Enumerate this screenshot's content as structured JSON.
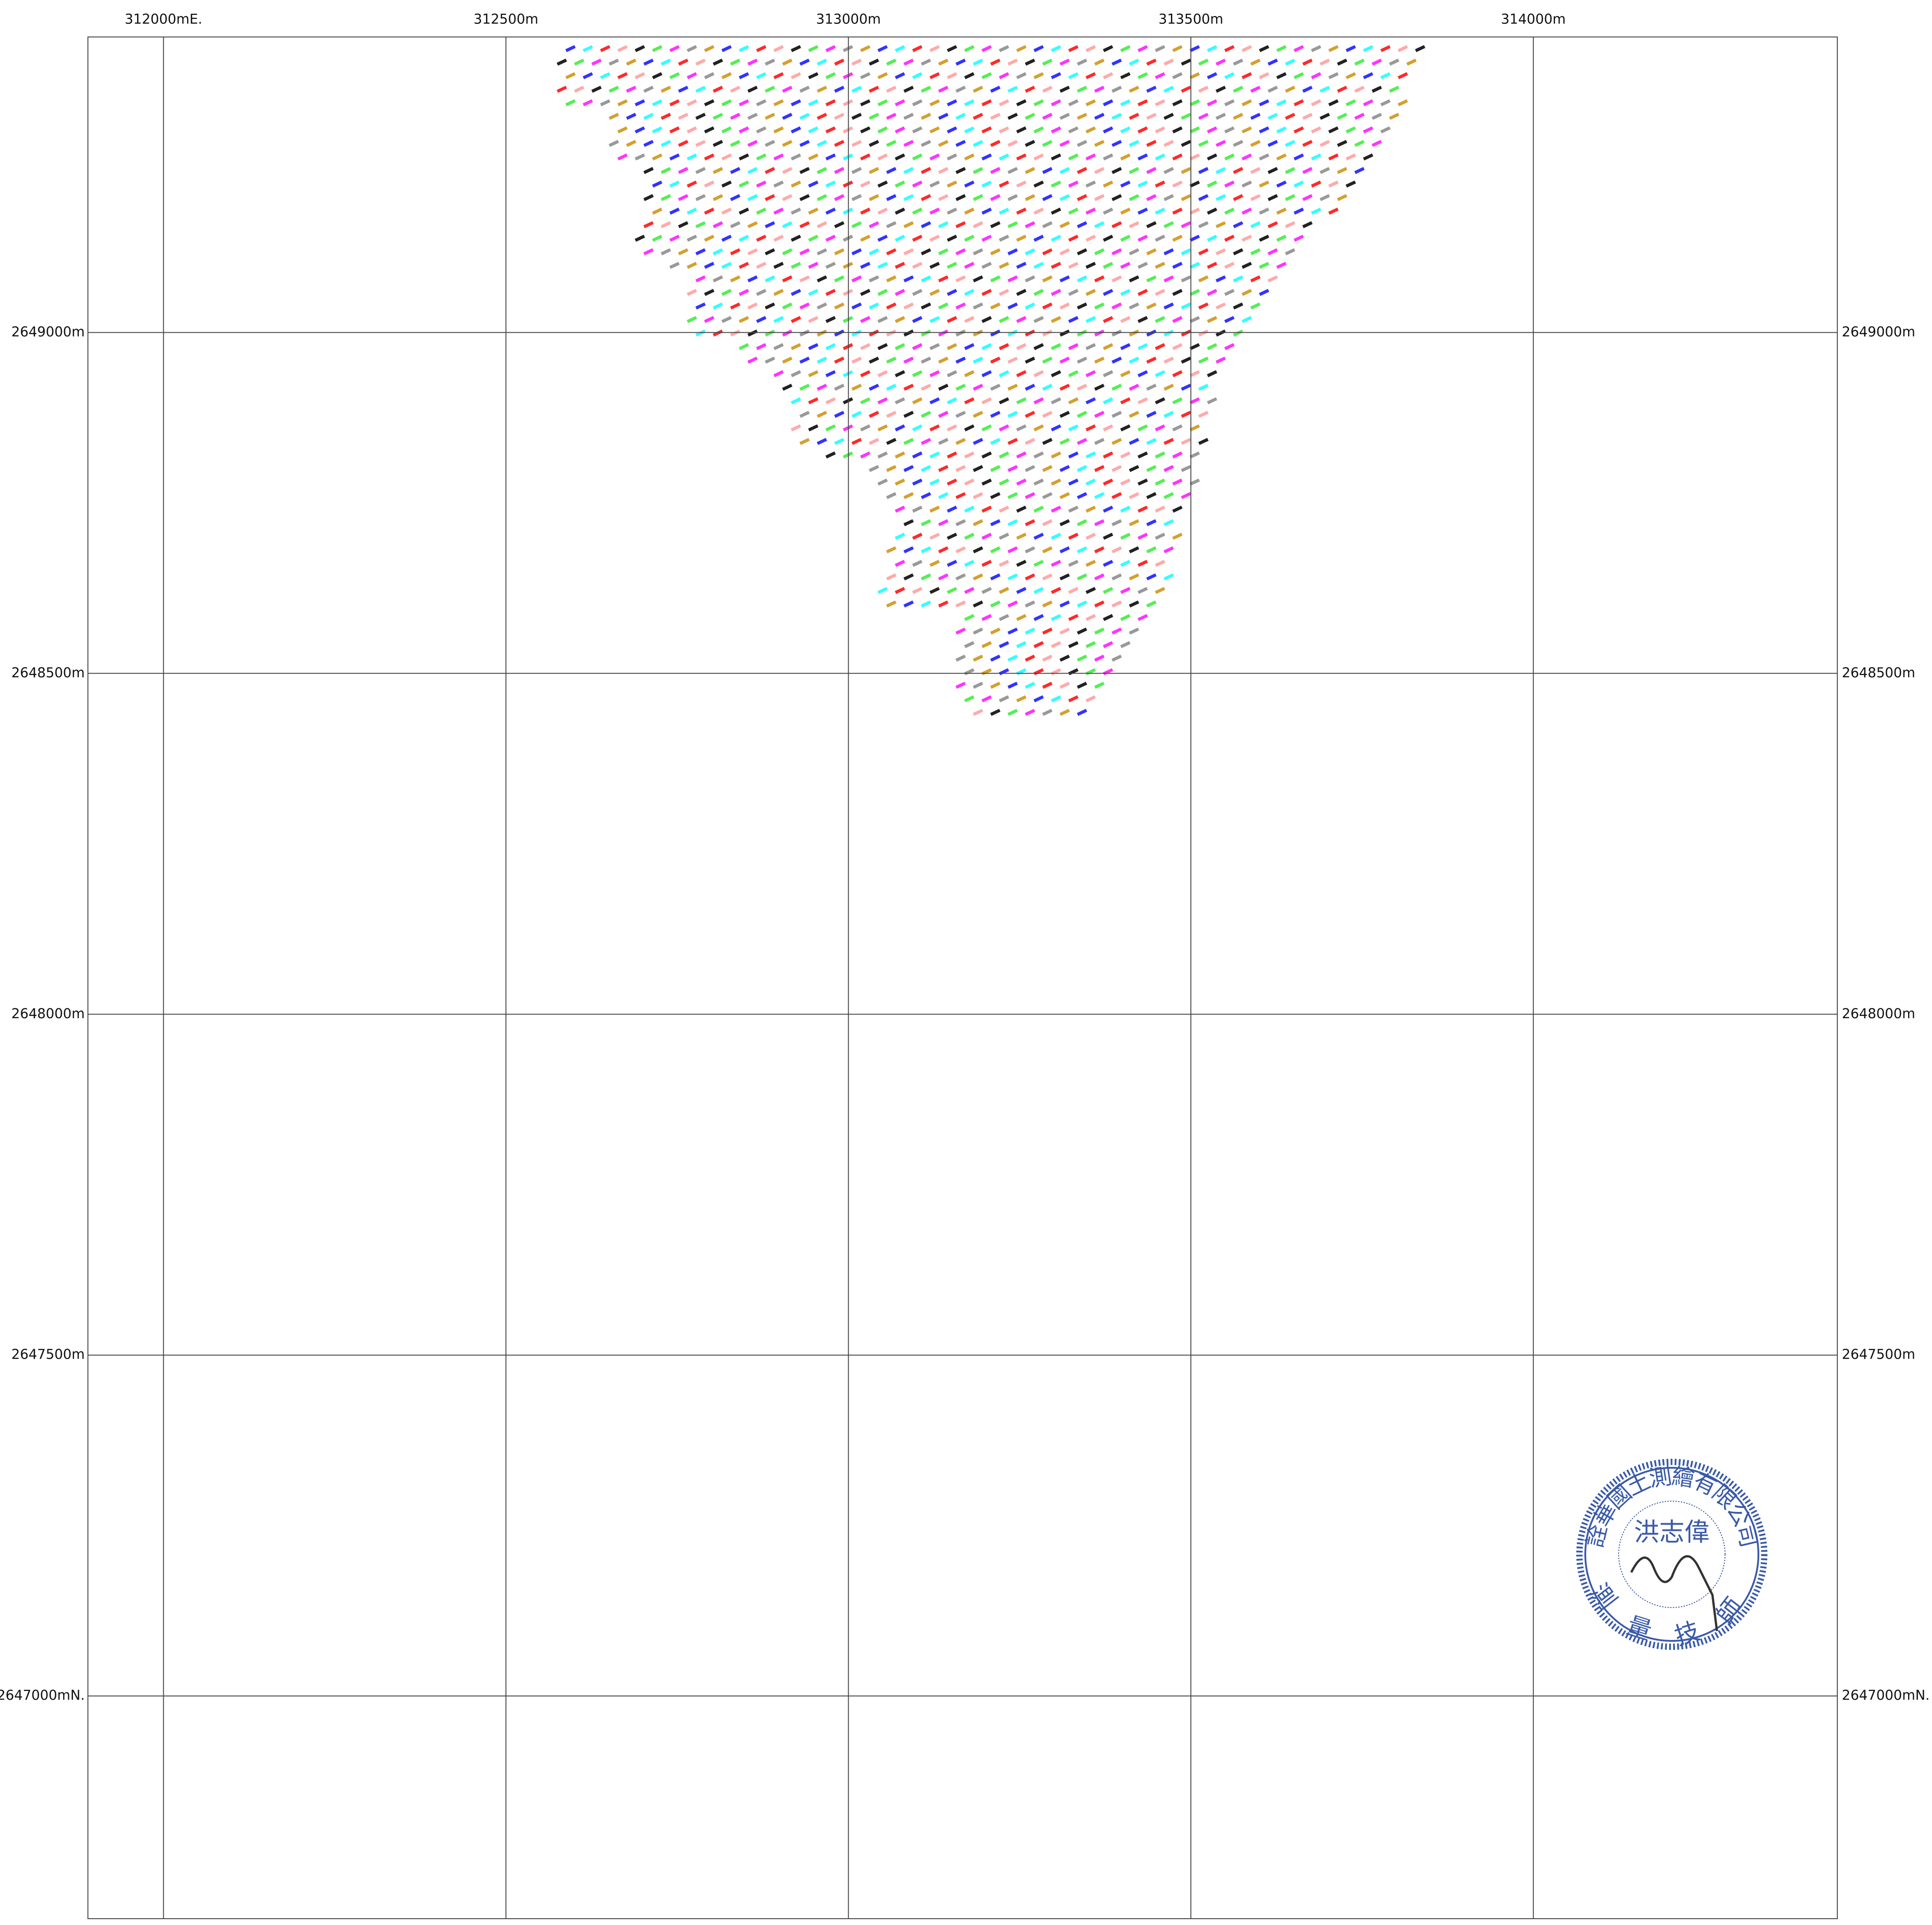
{
  "grid": {
    "eastings": [
      {
        "value": 312000,
        "label": "312000mE."
      },
      {
        "value": 312500,
        "label": "312500m"
      },
      {
        "value": 313000,
        "label": "313000m"
      },
      {
        "value": 313500,
        "label": "313500m"
      },
      {
        "value": 314000,
        "label": "314000m"
      }
    ],
    "northings": [
      {
        "value": 2649000,
        "label": "2649000m"
      },
      {
        "value": 2648500,
        "label": "2648500m"
      },
      {
        "value": 2648000,
        "label": "2648000m"
      },
      {
        "value": 2647500,
        "label": "2647500m"
      },
      {
        "value": 2647000,
        "label": "2647000mN."
      }
    ]
  },
  "stamp": {
    "company": "詮華國土測繪有限公司",
    "name": "洪志偉",
    "title": "測量技師"
  }
}
